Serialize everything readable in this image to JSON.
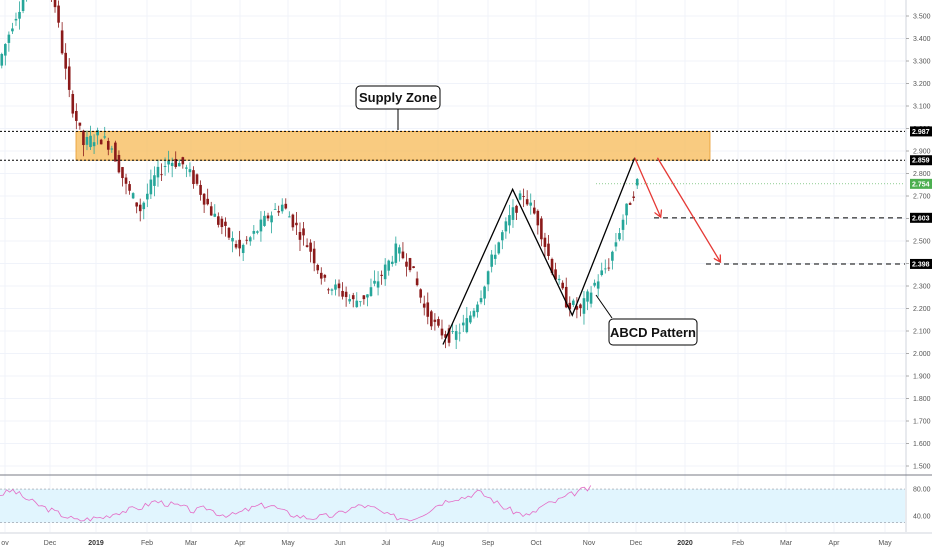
{
  "chart_data": [
    {
      "type": "candlestick",
      "y_ticks": [
        "3.500",
        "3.400",
        "3.300",
        "3.200",
        "3.100",
        "3.000",
        "2.900",
        "2.800",
        "2.700",
        "2.600",
        "2.500",
        "2.400",
        "2.300",
        "2.200",
        "2.100",
        "2.000",
        "1.900",
        "1.800",
        "1.700",
        "1.600",
        "1.500"
      ],
      "ylim": [
        1.47,
        3.56
      ],
      "x_ticks": [
        {
          "label": "ov",
          "bold": false
        },
        {
          "label": "Dec",
          "bold": false
        },
        {
          "label": "2019",
          "bold": true
        },
        {
          "label": "Feb",
          "bold": false
        },
        {
          "label": "Mar",
          "bold": false
        },
        {
          "label": "Apr",
          "bold": false
        },
        {
          "label": "May",
          "bold": false
        },
        {
          "label": "Jun",
          "bold": false
        },
        {
          "label": "Jul",
          "bold": false
        },
        {
          "label": "Aug",
          "bold": false
        },
        {
          "label": "Sep",
          "bold": false
        },
        {
          "label": "Oct",
          "bold": false
        },
        {
          "label": "Nov",
          "bold": false
        },
        {
          "label": "Dec",
          "bold": false
        },
        {
          "label": "2020",
          "bold": true
        },
        {
          "label": "Feb",
          "bold": false
        },
        {
          "label": "Mar",
          "bold": false
        },
        {
          "label": "Apr",
          "bold": false
        },
        {
          "label": "May",
          "bold": false
        }
      ],
      "price_path": [
        3.28,
        3.47,
        3.62,
        3.75,
        3.55,
        3.15,
        2.93,
        2.97,
        2.92,
        2.74,
        2.64,
        2.78,
        2.86,
        2.84,
        2.75,
        2.63,
        2.54,
        2.46,
        2.53,
        2.61,
        2.66,
        2.56,
        2.46,
        2.31,
        2.28,
        2.23,
        2.26,
        2.35,
        2.46,
        2.4,
        2.2,
        2.1,
        2.07,
        2.14,
        2.27,
        2.46,
        2.6,
        2.71,
        2.59,
        2.38,
        2.23,
        2.19,
        2.31,
        2.4,
        2.6,
        2.76
      ],
      "levels": [
        {
          "value": "2.987",
          "color": "#000000"
        },
        {
          "value": "2.859",
          "color": "#000000"
        },
        {
          "value": "2.754",
          "color": "#4caf50"
        },
        {
          "value": "2.603",
          "color": "#000000"
        },
        {
          "value": "2.398",
          "color": "#000000"
        }
      ],
      "supply_zone": {
        "label": "Supply Zone",
        "from": 2.859,
        "to": 2.987,
        "color": "#f7b955"
      },
      "abcd_label": "ABCD Pattern",
      "abcd_points": [
        {
          "index": 31.2,
          "price": 2.04
        },
        {
          "index": 36.1,
          "price": 2.73
        },
        {
          "index": 40.3,
          "price": 2.17
        },
        {
          "index": 44.7,
          "price": 2.87
        }
      ],
      "projection_arrows": [
        {
          "from_index": 44.7,
          "from_price": 2.87,
          "to_index": 46.5,
          "to_price": 2.61
        },
        {
          "from_index": 46.3,
          "from_price": 2.87,
          "to_index": 50.7,
          "to_price": 2.41
        }
      ]
    },
    {
      "type": "line",
      "indicator": "RSI",
      "y_ticks": [
        "80.00",
        "40.00"
      ],
      "ylim": [
        25,
        92
      ],
      "band": [
        30,
        80
      ],
      "band_color": "#e1f5fe",
      "line_color": "#e46cc6",
      "values": [
        72,
        78,
        66,
        56,
        48,
        40,
        33,
        36,
        38,
        45,
        49,
        53,
        62,
        58,
        54,
        47,
        52,
        43,
        41,
        48,
        55,
        56,
        46,
        40,
        37,
        39,
        41,
        50,
        56,
        51,
        41,
        37,
        36,
        46,
        58,
        66,
        68,
        76,
        66,
        53,
        45,
        40,
        55,
        61,
        70,
        78,
        82
      ]
    }
  ]
}
